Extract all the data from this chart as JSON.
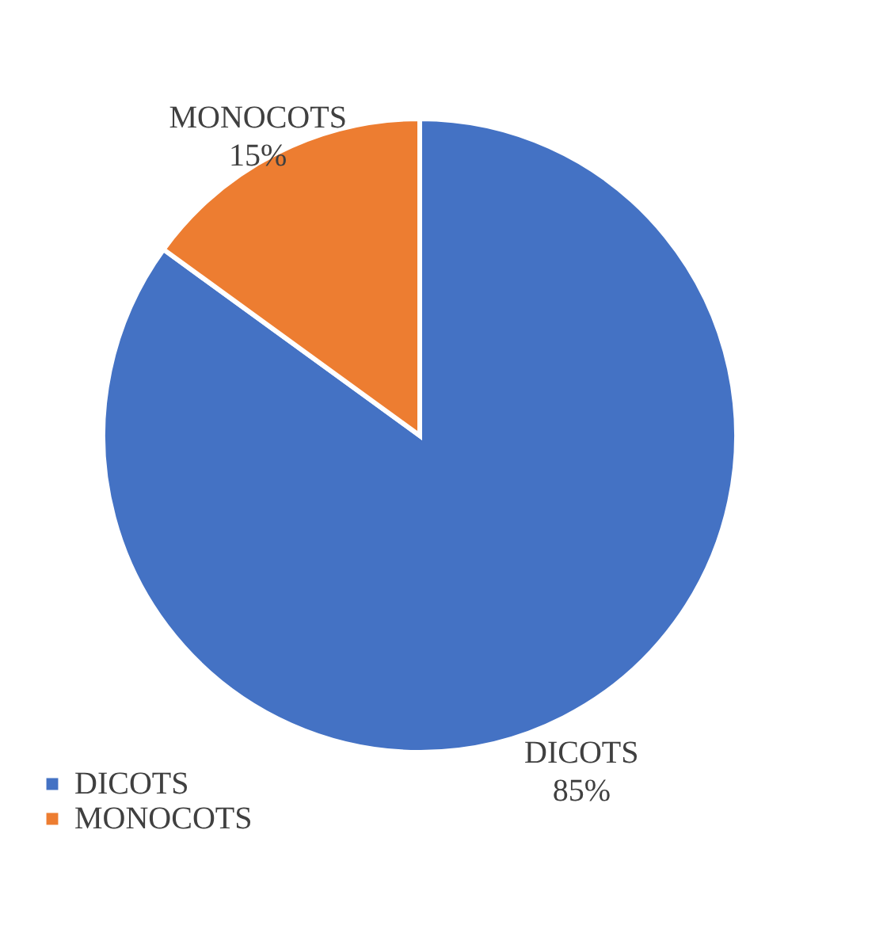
{
  "chart_data": {
    "type": "pie",
    "categories": [
      "DICOTS",
      "MONOCOTS"
    ],
    "values": [
      85,
      15
    ],
    "colors": [
      "#4472c4",
      "#ed7d31"
    ],
    "value_labels": [
      "85%",
      "15%"
    ],
    "legend": "bottom left"
  }
}
